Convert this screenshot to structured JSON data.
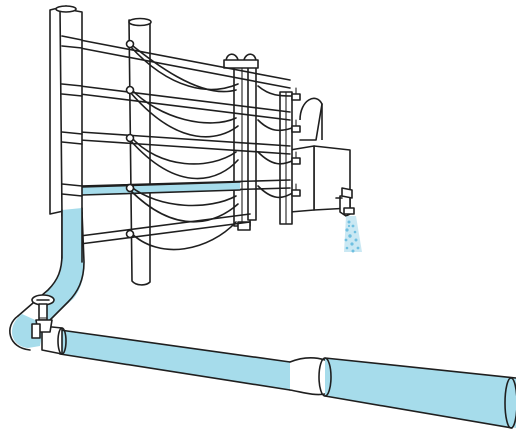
{
  "colors": {
    "water": "#a6dceb",
    "spray": "#9fd6ea",
    "line": "#1f1f1f",
    "background": "#ffffff"
  },
  "icons": [
    "valve-icon",
    "tap-icon",
    "water-spray-icon"
  ]
}
